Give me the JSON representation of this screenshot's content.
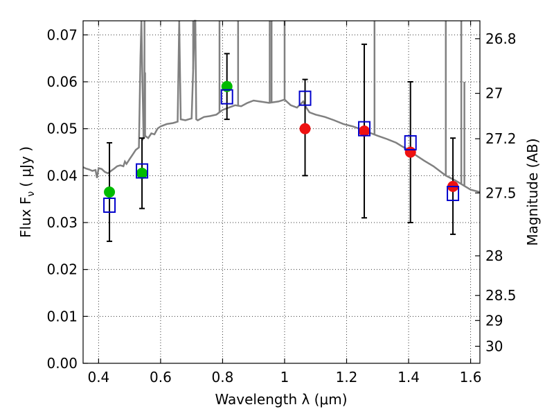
{
  "chart_data": {
    "type": "scatter",
    "xlabel": "Wavelength  λ (μm)",
    "ylabel": "Flux  F",
    "ylabel_sub": "ν",
    "ylabel_unit": "( μJy )",
    "y2label": "Magnitude (AB)",
    "xlim": [
      0.35,
      1.63
    ],
    "ylim": [
      0.0,
      0.073
    ],
    "grid": true,
    "x_ticks": [
      0.4,
      0.6,
      0.8,
      1.0,
      1.2,
      1.4,
      1.6
    ],
    "x_tick_labels": [
      "0.4",
      "0.6",
      "0.8",
      "1",
      "1.2",
      "1.4",
      "1.6"
    ],
    "y_ticks": [
      0.0,
      0.01,
      0.02,
      0.03,
      0.04,
      0.05,
      0.06,
      0.07
    ],
    "y_tick_labels": [
      "0.00",
      "0.01",
      "0.02",
      "0.03",
      "0.04",
      "0.05",
      "0.06",
      "0.07"
    ],
    "mag_ticks": [
      26.8,
      27.0,
      27.2,
      27.5,
      28.0,
      28.5,
      29.0,
      30.0
    ],
    "mag_tick_labels": [
      "26.8",
      "27",
      "27.2",
      "27.5",
      "28",
      "28.5",
      "29",
      "30"
    ],
    "colors": {
      "spectrum": "#808080",
      "green_points": "#00bb00",
      "red_points": "#ee1111",
      "model_boxes": "#0000cc",
      "errorbars": "#000000"
    },
    "series": [
      {
        "marker": "circle",
        "color_key": "green_points",
        "points": [
          {
            "x": 0.435,
            "y": 0.0365,
            "err_low": 0.026,
            "err_high": 0.047
          },
          {
            "x": 0.54,
            "y": 0.0405,
            "err_low": 0.033,
            "err_high": 0.048
          },
          {
            "x": 0.814,
            "y": 0.059,
            "err_low": 0.052,
            "err_high": 0.066
          }
        ]
      },
      {
        "marker": "circle",
        "color_key": "red_points",
        "points": [
          {
            "x": 1.066,
            "y": 0.05,
            "err_low": 0.04,
            "err_high": 0.0605
          },
          {
            "x": 1.257,
            "y": 0.0495,
            "err_low": 0.031,
            "err_high": 0.068
          },
          {
            "x": 1.406,
            "y": 0.045,
            "err_low": 0.03,
            "err_high": 0.06
          },
          {
            "x": 1.543,
            "y": 0.0377,
            "err_low": 0.0275,
            "err_high": 0.048
          }
        ]
      },
      {
        "marker": "open-square",
        "color_key": "model_boxes",
        "points": [
          {
            "x": 0.435,
            "y": 0.0337
          },
          {
            "x": 0.54,
            "y": 0.041
          },
          {
            "x": 0.814,
            "y": 0.0568
          },
          {
            "x": 1.066,
            "y": 0.0565
          },
          {
            "x": 1.257,
            "y": 0.05
          },
          {
            "x": 1.406,
            "y": 0.047
          },
          {
            "x": 1.543,
            "y": 0.0362
          }
        ]
      }
    ],
    "spectrum": {
      "x": [
        0.35,
        0.36,
        0.37,
        0.38,
        0.39,
        0.395,
        0.4,
        0.41,
        0.42,
        0.43,
        0.44,
        0.45,
        0.46,
        0.47,
        0.48,
        0.485,
        0.49,
        0.5,
        0.51,
        0.52,
        0.53,
        0.535,
        0.538,
        0.54,
        0.545,
        0.55,
        0.56,
        0.57,
        0.58,
        0.59,
        0.6,
        0.62,
        0.64,
        0.655,
        0.66,
        0.665,
        0.68,
        0.7,
        0.71,
        0.712,
        0.715,
        0.72,
        0.74,
        0.76,
        0.78,
        0.8,
        0.82,
        0.84,
        0.86,
        0.88,
        0.9,
        0.92,
        0.95,
        0.98,
        1.0,
        1.02,
        1.04,
        1.06,
        1.07,
        1.08,
        1.1,
        1.13,
        1.16,
        1.19,
        1.22,
        1.25,
        1.28,
        1.3,
        1.33,
        1.36,
        1.38,
        1.4,
        1.42,
        1.45,
        1.48,
        1.5,
        1.52,
        1.55,
        1.58,
        1.6,
        1.63
      ],
      "y": [
        0.0418,
        0.0415,
        0.0413,
        0.041,
        0.0412,
        0.0395,
        0.0416,
        0.0414,
        0.0408,
        0.0405,
        0.041,
        0.0415,
        0.042,
        0.0422,
        0.042,
        0.043,
        0.0425,
        0.0435,
        0.0445,
        0.0455,
        0.046,
        0.065,
        0.073,
        0.065,
        0.048,
        0.0485,
        0.048,
        0.049,
        0.0488,
        0.05,
        0.0505,
        0.051,
        0.0512,
        0.0515,
        0.073,
        0.052,
        0.0518,
        0.0522,
        0.073,
        0.073,
        0.052,
        0.0518,
        0.0525,
        0.0527,
        0.053,
        0.054,
        0.0545,
        0.055,
        0.0548,
        0.0555,
        0.056,
        0.0558,
        0.0555,
        0.0558,
        0.0562,
        0.055,
        0.0545,
        0.0558,
        0.0545,
        0.0535,
        0.053,
        0.0525,
        0.0518,
        0.051,
        0.0505,
        0.0498,
        0.049,
        0.0485,
        0.0478,
        0.047,
        0.0462,
        0.0455,
        0.0445,
        0.0432,
        0.042,
        0.041,
        0.04,
        0.039,
        0.0378,
        0.037,
        0.0365
      ]
    },
    "spectrum_spikes": [
      {
        "x": 0.538,
        "y": 0.073
      },
      {
        "x": 0.548,
        "y": 0.073
      },
      {
        "x": 0.55,
        "y": 0.062
      },
      {
        "x": 0.66,
        "y": 0.073
      },
      {
        "x": 0.705,
        "y": 0.073
      },
      {
        "x": 0.71,
        "y": 0.073
      },
      {
        "x": 0.79,
        "y": 0.073
      },
      {
        "x": 0.85,
        "y": 0.073
      },
      {
        "x": 0.952,
        "y": 0.073
      },
      {
        "x": 0.958,
        "y": 0.073
      },
      {
        "x": 1.0,
        "y": 0.073
      },
      {
        "x": 1.29,
        "y": 0.073
      },
      {
        "x": 1.52,
        "y": 0.073
      },
      {
        "x": 1.57,
        "y": 0.073
      },
      {
        "x": 1.58,
        "y": 0.06
      }
    ]
  }
}
